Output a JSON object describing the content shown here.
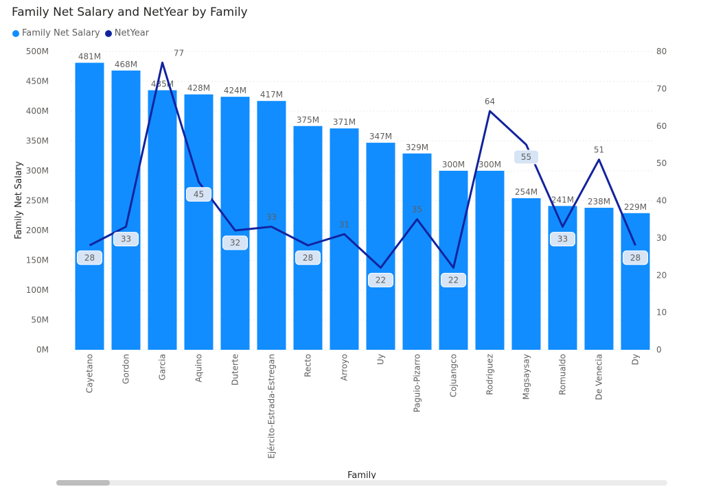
{
  "chart_data": {
    "type": "bar+line",
    "title": "Family Net Salary and NetYear by Family",
    "xlabel": "Family",
    "ylabel": "Family Net Salary",
    "ylim": [
      0,
      500
    ],
    "y2lim": [
      0,
      80
    ],
    "categories": [
      "Cayetano",
      "Gordon",
      "Garcia",
      "Aquino",
      "Duterte",
      "Ejército-Estrada-Estregan",
      "Recto",
      "Arroyo",
      "Uy",
      "Paguio-Pizarro",
      "Cojuangco",
      "Rodriguez",
      "Magsaysay",
      "Romualdo",
      "De Venecia",
      "Dy"
    ],
    "series": [
      {
        "name": "Family Net Salary",
        "type": "bar",
        "axis": "left",
        "color": "#118DFF",
        "values": [
          481,
          468,
          435,
          428,
          424,
          417,
          375,
          371,
          347,
          329,
          300,
          300,
          254,
          241,
          238,
          229
        ],
        "labels": [
          "481M",
          "468M",
          "435M",
          "428M",
          "424M",
          "417M",
          "375M",
          "371M",
          "347M",
          "329M",
          "300M",
          "300M",
          "254M",
          "241M",
          "238M",
          "229M"
        ]
      },
      {
        "name": "NetYear",
        "type": "line",
        "axis": "right",
        "color": "#12239E",
        "values": [
          28,
          33,
          77,
          45,
          32,
          33,
          28,
          31,
          22,
          35,
          22,
          64,
          55,
          33,
          51,
          28
        ],
        "labels": [
          "28",
          "33",
          "77",
          "45",
          "32",
          "33",
          "28",
          "31",
          "22",
          "35",
          "22",
          "64",
          "55",
          "33",
          "51",
          "28"
        ]
      }
    ],
    "left_ticks": [
      "0M",
      "50M",
      "100M",
      "150M",
      "200M",
      "250M",
      "300M",
      "350M",
      "400M",
      "450M",
      "500M"
    ],
    "right_ticks": [
      "0",
      "10",
      "20",
      "30",
      "40",
      "50",
      "60",
      "70",
      "80"
    ],
    "legend_position": "top-left",
    "grid": true
  },
  "colors": {
    "bar": "#118DFF",
    "line": "#12239E",
    "grid": "#d9d9d9",
    "axis_text": "#605e5c"
  }
}
